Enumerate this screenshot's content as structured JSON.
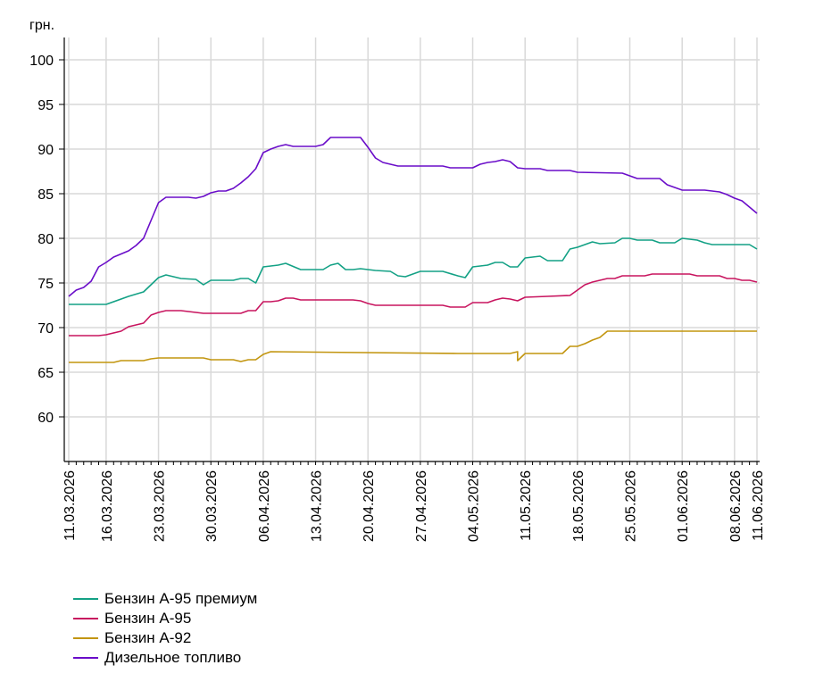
{
  "chart_data": {
    "type": "line",
    "ylabel": "грн.",
    "ylim": [
      55,
      100
    ],
    "yticks": [
      60,
      65,
      70,
      75,
      80,
      85,
      90,
      95,
      100
    ],
    "x_start": "11.03.2026",
    "x_end": "11.06.2026",
    "xtick_labels": [
      "11.03.2026",
      "16.03.2026",
      "23.03.2026",
      "30.03.2026",
      "06.04.2026",
      "13.04.2026",
      "20.04.2026",
      "27.04.2026",
      "04.05.2026",
      "11.05.2026",
      "18.05.2026",
      "25.05.2026",
      "01.06.2026",
      "08.06.2026",
      "11.06.2026"
    ],
    "grid": true,
    "legend_position": "bottom-left",
    "series": [
      {
        "name": "Бензин А-95 премиум",
        "color": "#13a185",
        "points": [
          [
            "11.03.2026",
            72.6
          ],
          [
            "16.03.2026",
            72.6
          ],
          [
            "19.03.2026",
            73.5
          ],
          [
            "21.03.2026",
            74.0
          ],
          [
            "23.03.2026",
            75.6
          ],
          [
            "24.03.2026",
            75.9
          ],
          [
            "26.03.2026",
            75.5
          ],
          [
            "28.03.2026",
            75.4
          ],
          [
            "29.03.2026",
            74.8
          ],
          [
            "30.03.2026",
            75.3
          ],
          [
            "02.04.2026",
            75.3
          ],
          [
            "03.04.2026",
            75.5
          ],
          [
            "04.04.2026",
            75.5
          ],
          [
            "05.04.2026",
            75.0
          ],
          [
            "06.04.2026",
            76.8
          ],
          [
            "08.04.2026",
            77.0
          ],
          [
            "09.04.2026",
            77.2
          ],
          [
            "11.04.2026",
            76.5
          ],
          [
            "13.04.2026",
            76.5
          ],
          [
            "14.04.2026",
            76.5
          ],
          [
            "15.04.2026",
            77.0
          ],
          [
            "16.04.2026",
            77.2
          ],
          [
            "17.04.2026",
            76.5
          ],
          [
            "18.04.2026",
            76.5
          ],
          [
            "19.04.2026",
            76.6
          ],
          [
            "21.04.2026",
            76.4
          ],
          [
            "23.04.2026",
            76.3
          ],
          [
            "24.04.2026",
            75.8
          ],
          [
            "25.04.2026",
            75.7
          ],
          [
            "27.04.2026",
            76.3
          ],
          [
            "30.04.2026",
            76.3
          ],
          [
            "02.05.2026",
            75.8
          ],
          [
            "03.05.2026",
            75.6
          ],
          [
            "04.05.2026",
            76.8
          ],
          [
            "06.05.2026",
            77.0
          ],
          [
            "07.05.2026",
            77.3
          ],
          [
            "08.05.2026",
            77.3
          ],
          [
            "09.05.2026",
            76.8
          ],
          [
            "10.05.2026",
            76.8
          ],
          [
            "11.05.2026",
            77.8
          ],
          [
            "13.05.2026",
            78.0
          ],
          [
            "14.05.2026",
            77.5
          ],
          [
            "16.05.2026",
            77.5
          ],
          [
            "17.05.2026",
            78.8
          ],
          [
            "18.05.2026",
            79.0
          ],
          [
            "20.05.2026",
            79.6
          ],
          [
            "21.05.2026",
            79.4
          ],
          [
            "23.05.2026",
            79.5
          ],
          [
            "24.05.2026",
            80.0
          ],
          [
            "25.05.2026",
            80.0
          ],
          [
            "26.05.2026",
            79.8
          ],
          [
            "28.05.2026",
            79.8
          ],
          [
            "29.05.2026",
            79.5
          ],
          [
            "31.05.2026",
            79.5
          ],
          [
            "01.06.2026",
            80.0
          ],
          [
            "03.06.2026",
            79.8
          ],
          [
            "04.06.2026",
            79.5
          ],
          [
            "05.06.2026",
            79.3
          ],
          [
            "10.06.2026",
            79.3
          ],
          [
            "11.06.2026",
            78.8
          ]
        ]
      },
      {
        "name": "Бензин А-95",
        "color": "#c8155f",
        "points": [
          [
            "11.03.2026",
            69.1
          ],
          [
            "15.03.2026",
            69.1
          ],
          [
            "16.03.2026",
            69.2
          ],
          [
            "18.03.2026",
            69.6
          ],
          [
            "19.03.2026",
            70.1
          ],
          [
            "20.03.2026",
            70.3
          ],
          [
            "21.03.2026",
            70.5
          ],
          [
            "22.03.2026",
            71.4
          ],
          [
            "23.03.2026",
            71.7
          ],
          [
            "24.03.2026",
            71.9
          ],
          [
            "26.03.2026",
            71.9
          ],
          [
            "27.03.2026",
            71.8
          ],
          [
            "29.03.2026",
            71.6
          ],
          [
            "31.03.2026",
            71.6
          ],
          [
            "03.04.2026",
            71.6
          ],
          [
            "04.04.2026",
            71.9
          ],
          [
            "05.04.2026",
            71.9
          ],
          [
            "06.04.2026",
            72.9
          ],
          [
            "07.04.2026",
            72.9
          ],
          [
            "08.04.2026",
            73.0
          ],
          [
            "09.04.2026",
            73.3
          ],
          [
            "10.04.2026",
            73.3
          ],
          [
            "11.04.2026",
            73.1
          ],
          [
            "18.04.2026",
            73.1
          ],
          [
            "19.04.2026",
            73.0
          ],
          [
            "20.04.2026",
            72.7
          ],
          [
            "21.04.2026",
            72.5
          ],
          [
            "30.04.2026",
            72.5
          ],
          [
            "01.05.2026",
            72.3
          ],
          [
            "03.05.2026",
            72.3
          ],
          [
            "04.05.2026",
            72.8
          ],
          [
            "06.05.2026",
            72.8
          ],
          [
            "07.05.2026",
            73.1
          ],
          [
            "08.05.2026",
            73.3
          ],
          [
            "09.05.2026",
            73.2
          ],
          [
            "10.05.2026",
            73.0
          ],
          [
            "11.05.2026",
            73.4
          ],
          [
            "14.05.2026",
            73.5
          ],
          [
            "17.05.2026",
            73.6
          ],
          [
            "18.05.2026",
            74.2
          ],
          [
            "19.05.2026",
            74.8
          ],
          [
            "20.05.2026",
            75.1
          ],
          [
            "22.05.2026",
            75.5
          ],
          [
            "23.05.2026",
            75.5
          ],
          [
            "24.05.2026",
            75.8
          ],
          [
            "27.05.2026",
            75.8
          ],
          [
            "28.05.2026",
            76.0
          ],
          [
            "01.06.2026",
            76.0
          ],
          [
            "02.06.2026",
            76.0
          ],
          [
            "03.06.2026",
            75.8
          ],
          [
            "06.06.2026",
            75.8
          ],
          [
            "07.06.2026",
            75.5
          ],
          [
            "08.06.2026",
            75.5
          ],
          [
            "09.06.2026",
            75.3
          ],
          [
            "10.06.2026",
            75.3
          ],
          [
            "11.06.2026",
            75.1
          ]
        ]
      },
      {
        "name": "Бензин А-92",
        "color": "#c2950f",
        "points": [
          [
            "11.03.2026",
            66.1
          ],
          [
            "15.03.2026",
            66.1
          ],
          [
            "16.03.2026",
            66.1
          ],
          [
            "17.03.2026",
            66.1
          ],
          [
            "18.03.2026",
            66.3
          ],
          [
            "21.03.2026",
            66.3
          ],
          [
            "22.03.2026",
            66.5
          ],
          [
            "23.03.2026",
            66.6
          ],
          [
            "24.03.2026",
            66.6
          ],
          [
            "29.03.2026",
            66.6
          ],
          [
            "30.03.2026",
            66.4
          ],
          [
            "02.04.2026",
            66.4
          ],
          [
            "03.04.2026",
            66.2
          ],
          [
            "04.04.2026",
            66.4
          ],
          [
            "05.04.2026",
            66.4
          ],
          [
            "06.04.2026",
            67.0
          ],
          [
            "07.04.2026",
            67.3
          ],
          [
            "10.05.2026",
            67.3
          ],
          [
            "11.05.2026",
            67.1
          ],
          [
            "02.05.2026",
            67.1
          ],
          [
            "09.05.2026",
            67.1
          ],
          [
            "10.05.2026",
            66.3
          ],
          [
            "11.05.2026",
            67.1
          ],
          [
            "16.05.2026",
            67.1
          ],
          [
            "17.05.2026",
            67.9
          ],
          [
            "18.05.2026",
            67.9
          ],
          [
            "19.05.2026",
            68.2
          ],
          [
            "20.05.2026",
            68.6
          ],
          [
            "21.05.2026",
            68.9
          ],
          [
            "22.05.2026",
            69.6
          ],
          [
            "11.06.2026",
            69.6
          ]
        ]
      },
      {
        "name": "Дизельное топливо",
        "color": "#6a0dc9",
        "points": [
          [
            "11.03.2026",
            73.5
          ],
          [
            "12.03.2026",
            74.2
          ],
          [
            "13.03.2026",
            74.5
          ],
          [
            "14.03.2026",
            75.2
          ],
          [
            "15.03.2026",
            76.8
          ],
          [
            "16.03.2026",
            77.3
          ],
          [
            "17.03.2026",
            77.9
          ],
          [
            "19.03.2026",
            78.6
          ],
          [
            "20.03.2026",
            79.2
          ],
          [
            "21.03.2026",
            80.0
          ],
          [
            "22.03.2026",
            82.0
          ],
          [
            "23.03.2026",
            84.0
          ],
          [
            "24.03.2026",
            84.6
          ],
          [
            "27.03.2026",
            84.6
          ],
          [
            "28.03.2026",
            84.5
          ],
          [
            "29.03.2026",
            84.7
          ],
          [
            "30.03.2026",
            85.1
          ],
          [
            "31.03.2026",
            85.3
          ],
          [
            "01.04.2026",
            85.3
          ],
          [
            "02.04.2026",
            85.6
          ],
          [
            "03.04.2026",
            86.2
          ],
          [
            "04.04.2026",
            86.9
          ],
          [
            "05.04.2026",
            87.8
          ],
          [
            "06.04.2026",
            89.6
          ],
          [
            "07.04.2026",
            90.0
          ],
          [
            "08.04.2026",
            90.3
          ],
          [
            "09.04.2026",
            90.5
          ],
          [
            "10.04.2026",
            90.3
          ],
          [
            "13.04.2026",
            90.3
          ],
          [
            "14.04.2026",
            90.5
          ],
          [
            "15.04.2026",
            91.3
          ],
          [
            "19.04.2026",
            91.3
          ],
          [
            "20.04.2026",
            90.2
          ],
          [
            "21.04.2026",
            89.0
          ],
          [
            "22.04.2026",
            88.5
          ],
          [
            "23.04.2026",
            88.3
          ],
          [
            "24.04.2026",
            88.1
          ],
          [
            "30.04.2026",
            88.1
          ],
          [
            "01.05.2026",
            87.9
          ],
          [
            "04.05.2026",
            87.9
          ],
          [
            "05.05.2026",
            88.3
          ],
          [
            "06.05.2026",
            88.5
          ],
          [
            "07.05.2026",
            88.6
          ],
          [
            "08.05.2026",
            88.8
          ],
          [
            "09.05.2026",
            88.6
          ],
          [
            "10.05.2026",
            87.9
          ],
          [
            "11.05.2026",
            87.8
          ],
          [
            "13.05.2026",
            87.8
          ],
          [
            "14.05.2026",
            87.6
          ],
          [
            "17.05.2026",
            87.6
          ],
          [
            "18.05.2026",
            87.4
          ],
          [
            "24.05.2026",
            87.3
          ],
          [
            "25.05.2026",
            87.0
          ],
          [
            "26.05.2026",
            86.7
          ],
          [
            "29.05.2026",
            86.7
          ],
          [
            "30.05.2026",
            86.0
          ],
          [
            "31.05.2026",
            85.7
          ],
          [
            "01.06.2026",
            85.4
          ],
          [
            "04.06.2026",
            85.4
          ],
          [
            "05.06.2026",
            85.3
          ],
          [
            "06.06.2026",
            85.2
          ],
          [
            "07.06.2026",
            84.9
          ],
          [
            "08.06.2026",
            84.5
          ],
          [
            "09.06.2026",
            84.2
          ],
          [
            "10.06.2026",
            83.5
          ],
          [
            "11.06.2026",
            82.8
          ]
        ]
      }
    ]
  }
}
